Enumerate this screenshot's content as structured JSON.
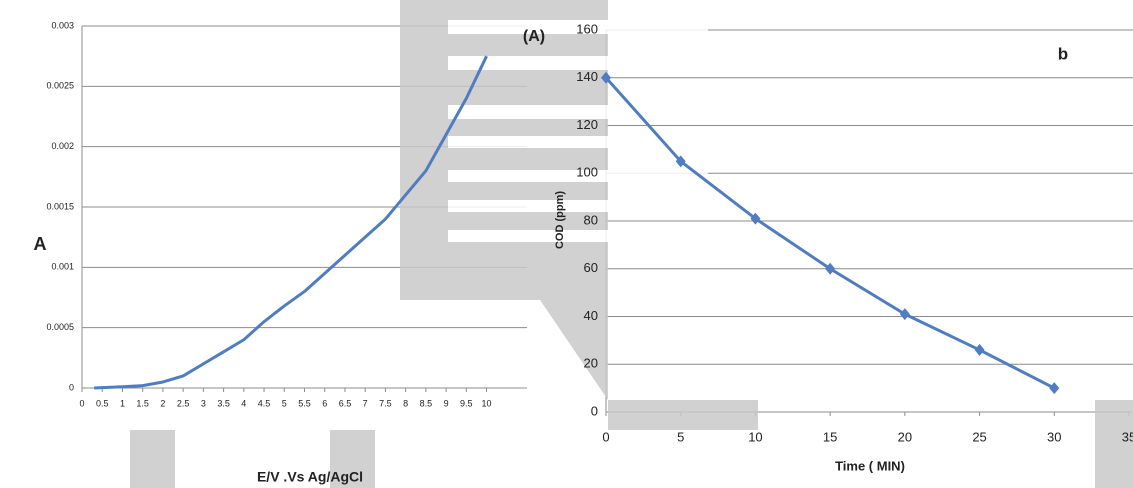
{
  "chart_data": [
    {
      "type": "line",
      "title": "(A)",
      "x_label": "E/V .Vs Ag/AgCl",
      "y_label": "A",
      "x": [
        0.3,
        1,
        1.5,
        2,
        2.5,
        3,
        3.5,
        4,
        4.5,
        5,
        5.5,
        6,
        6.5,
        7,
        7.5,
        8,
        8.5,
        9,
        9.5,
        10
      ],
      "series": [
        {
          "color": "#4f7dbf",
          "values": [
            0,
            1e-05,
            2e-05,
            5e-05,
            0.0001,
            0.0002,
            0.0003,
            0.0004,
            0.00055,
            0.00068,
            0.0008,
            0.00095,
            0.0011,
            0.00125,
            0.0014,
            0.0016,
            0.0018,
            0.0021,
            0.0024,
            0.00275
          ]
        }
      ],
      "xlim": [
        0,
        11
      ],
      "xticks": [
        0,
        0.5,
        1,
        1.5,
        2,
        2.5,
        3,
        3.5,
        4,
        4.5,
        5,
        5.5,
        6,
        6.5,
        7,
        7.5,
        8,
        8.5,
        9,
        9.5,
        10
      ],
      "ylim": [
        0,
        0.003
      ],
      "yticks": [
        0,
        0.0005,
        0.001,
        0.0015,
        0.002,
        0.0025,
        0.003
      ],
      "grid": true,
      "markers": false
    },
    {
      "type": "line",
      "title": "b",
      "x_label": "Time ( MIN)",
      "y_label": "COD (ppm)",
      "x": [
        0,
        5,
        10,
        15,
        20,
        25,
        30
      ],
      "series": [
        {
          "color": "#4f7dbf",
          "values": [
            140,
            105,
            81,
            60,
            41,
            26,
            10
          ]
        }
      ],
      "xlim": [
        0,
        35
      ],
      "xticks": [
        0,
        5,
        10,
        15,
        20,
        25,
        30,
        35
      ],
      "ylim": [
        0,
        160
      ],
      "yticks": [
        0,
        20,
        40,
        60,
        80,
        100,
        120,
        140,
        160
      ],
      "grid": true,
      "markers": true
    }
  ]
}
